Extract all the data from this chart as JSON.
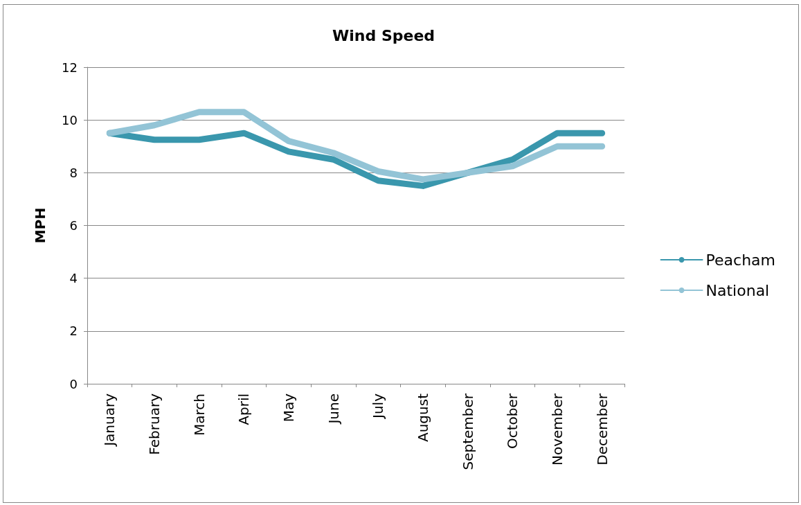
{
  "chart_data": {
    "type": "line",
    "title": "Wind Speed",
    "ylabel": "MPH",
    "categories": [
      "January",
      "February",
      "March",
      "April",
      "May",
      "June",
      "July",
      "August",
      "September",
      "October",
      "November",
      "December"
    ],
    "series": [
      {
        "name": "Peacham",
        "color": "#3a97ad",
        "values": [
          9.5,
          9.25,
          9.25,
          9.5,
          8.8,
          8.5,
          7.7,
          7.5,
          8.0,
          8.5,
          9.5,
          9.5
        ]
      },
      {
        "name": "National",
        "color": "#93c4d6",
        "values": [
          9.5,
          9.8,
          10.3,
          10.3,
          9.2,
          8.75,
          8.05,
          7.75,
          8.0,
          8.25,
          9.0,
          9.0
        ]
      }
    ],
    "ylim": [
      0,
      12
    ],
    "yticks": [
      0,
      2,
      4,
      6,
      8,
      10,
      12
    ],
    "grid": "y",
    "legend": "right",
    "marker": "none",
    "line_style": "solid"
  }
}
